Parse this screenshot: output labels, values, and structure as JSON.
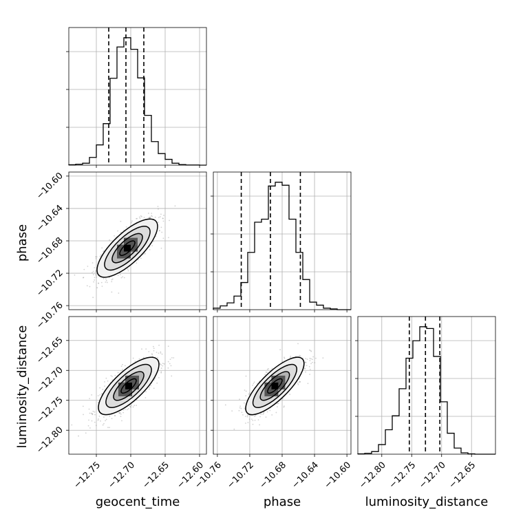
{
  "chart_data": {
    "type": "corner",
    "parameters": [
      "geocent_time",
      "phase",
      "luminosity_distance"
    ],
    "ranges": {
      "geocent_time": [
        -12.79,
        -12.59
      ],
      "phase": [
        -10.765,
        -10.595
      ],
      "luminosity_distance": [
        -12.84,
        -12.61
      ]
    },
    "ticks": {
      "geocent_time": [
        -12.75,
        -12.7,
        -12.65,
        -12.6
      ],
      "phase": [
        -10.76,
        -10.72,
        -10.68,
        -10.64,
        -10.6
      ],
      "luminosity_distance": [
        -12.8,
        -12.75,
        -12.7,
        -12.65
      ]
    },
    "tick_labels": {
      "geocent_time": [
        "−12.75",
        "−12.70",
        "−12.65",
        "−12.60"
      ],
      "phase": [
        "−10.76",
        "−10.72",
        "−10.68",
        "−10.64",
        "−10.60"
      ],
      "luminosity_distance": [
        "−12.80",
        "−12.75",
        "−12.70",
        "−12.65"
      ]
    },
    "row_tick_labels": {
      "phase": [
        "−10.60",
        "−10.64",
        "−10.68",
        "−10.72",
        "−10.76"
      ],
      "luminosity_distance": [
        "−12.65",
        "−12.70",
        "−12.75",
        "−12.80"
      ]
    },
    "histograms": [
      {
        "parameter": "geocent_time",
        "bin_edges": [
          -12.79,
          -12.78,
          -12.77,
          -12.76,
          -12.75,
          -12.74,
          -12.73,
          -12.72,
          -12.71,
          -12.7,
          -12.69,
          -12.68,
          -12.67,
          -12.66,
          -12.65,
          -12.64,
          -12.63,
          -12.62,
          -12.61,
          -12.6,
          -12.59
        ],
        "counts": [
          2,
          5,
          10,
          40,
          105,
          215,
          450,
          612,
          660,
          600,
          452,
          258,
          122,
          60,
          30,
          10,
          3,
          1,
          1,
          0
        ],
        "quantiles": [
          -12.732,
          -12.707,
          -12.681
        ]
      },
      {
        "parameter": "phase",
        "bin_edges": [
          -10.765,
          -10.7565,
          -10.748,
          -10.7395,
          -10.731,
          -10.7225,
          -10.714,
          -10.7055,
          -10.697,
          -10.6885,
          -10.68,
          -10.6715,
          -10.663,
          -10.6545,
          -10.646,
          -10.6375,
          -10.629,
          -10.6205,
          -10.612,
          -10.6035,
          -10.595
        ],
        "counts": [
          10,
          25,
          45,
          90,
          180,
          380,
          580,
          600,
          820,
          845,
          825,
          600,
          380,
          200,
          50,
          30,
          10,
          5,
          0,
          0
        ],
        "quantiles": [
          -10.7305,
          -10.6945,
          -10.6575
        ]
      },
      {
        "parameter": "luminosity_distance",
        "bin_edges": [
          -12.84,
          -12.8285,
          -12.817,
          -12.8055,
          -12.794,
          -12.7825,
          -12.771,
          -12.7595,
          -12.748,
          -12.7365,
          -12.725,
          -12.7135,
          -12.702,
          -12.6905,
          -12.679,
          -12.6675,
          -12.656,
          -12.6445,
          -12.633,
          -12.6215,
          -12.61
        ],
        "counts": [
          2,
          5,
          15,
          55,
          140,
          220,
          375,
          550,
          650,
          730,
          720,
          560,
          300,
          120,
          35,
          8,
          2,
          0,
          0,
          0
        ],
        "quantiles": [
          -12.754,
          -12.727,
          -12.703
        ]
      }
    ],
    "joint": [
      {
        "x": "geocent_time",
        "y": "phase",
        "center": [
          -12.705,
          -10.689
        ],
        "sigma": [
          0.022,
          0.018
        ],
        "rho": 0.75
      },
      {
        "x": "geocent_time",
        "y": "luminosity_distance",
        "center": [
          -12.703,
          -12.726
        ],
        "sigma": [
          0.022,
          0.024
        ],
        "rho": 0.75
      },
      {
        "x": "phase",
        "y": "luminosity_distance",
        "center": [
          -10.689,
          -12.726
        ],
        "sigma": [
          0.018,
          0.024
        ],
        "rho": 0.78
      }
    ],
    "contour_levels_sigma": [
      0.5,
      1.0,
      1.5,
      2.0
    ],
    "grid": true,
    "xlabel": [
      "geocent_time",
      "phase",
      "luminosity_distance"
    ],
    "ylabel": [
      "phase",
      "luminosity_distance"
    ]
  }
}
